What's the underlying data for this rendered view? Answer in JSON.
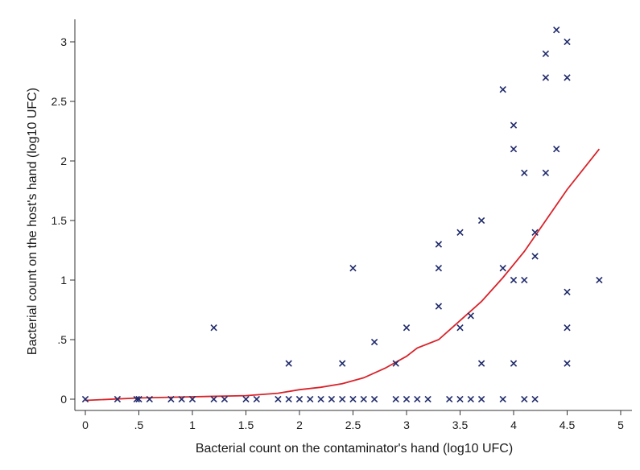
{
  "chart_data": {
    "type": "scatter",
    "xlabel": "Bacterial count on the contaminator's hand (log10 UFC)",
    "ylabel": "Bacterial count on the host's hand (log10 UFC)",
    "xlim": [
      -0.1,
      5.1
    ],
    "ylim": [
      -0.05,
      3.2
    ],
    "x_ticks": [
      0,
      0.5,
      1,
      1.5,
      2,
      2.5,
      3,
      3.5,
      4,
      4.5,
      5
    ],
    "x_tick_labels": [
      "0",
      ".5",
      "1",
      "1.5",
      "2",
      "2.5",
      "3",
      "3.5",
      "4",
      "4.5",
      "5"
    ],
    "y_ticks": [
      0,
      0.5,
      1,
      1.5,
      2,
      2.5,
      3
    ],
    "y_tick_labels": [
      "0",
      ".5",
      "1",
      "1.5",
      "2",
      "2.5",
      "3"
    ],
    "grid": false,
    "colors": {
      "points": "#1f2a6b",
      "fit": "#d8232a",
      "axis": "#333333"
    },
    "series": [
      {
        "kind": "points",
        "marker": "x",
        "points": [
          [
            0,
            0
          ],
          [
            0.3,
            0
          ],
          [
            0.48,
            0
          ],
          [
            0.5,
            0
          ],
          [
            0.6,
            0
          ],
          [
            0.8,
            0
          ],
          [
            0.9,
            0
          ],
          [
            1.0,
            0
          ],
          [
            1.2,
            0
          ],
          [
            1.3,
            0
          ],
          [
            1.5,
            0
          ],
          [
            1.6,
            0
          ],
          [
            1.8,
            0
          ],
          [
            1.9,
            0
          ],
          [
            2.0,
            0
          ],
          [
            2.1,
            0
          ],
          [
            2.2,
            0
          ],
          [
            2.3,
            0
          ],
          [
            2.4,
            0
          ],
          [
            2.5,
            0
          ],
          [
            2.6,
            0
          ],
          [
            2.7,
            0
          ],
          [
            2.9,
            0
          ],
          [
            3.0,
            0
          ],
          [
            3.1,
            0
          ],
          [
            3.2,
            0
          ],
          [
            3.4,
            0
          ],
          [
            3.5,
            0
          ],
          [
            3.6,
            0
          ],
          [
            3.7,
            0
          ],
          [
            3.9,
            0
          ],
          [
            4.1,
            0
          ],
          [
            4.2,
            0
          ],
          [
            1.2,
            0.6
          ],
          [
            1.9,
            0.3
          ],
          [
            2.4,
            0.3
          ],
          [
            2.5,
            1.1
          ],
          [
            2.7,
            0.48
          ],
          [
            2.9,
            0.3
          ],
          [
            3.0,
            0.6
          ],
          [
            3.3,
            0.78
          ],
          [
            3.3,
            1.1
          ],
          [
            3.3,
            1.3
          ],
          [
            3.5,
            0.6
          ],
          [
            3.5,
            1.4
          ],
          [
            3.6,
            0.7
          ],
          [
            3.7,
            0.3
          ],
          [
            3.7,
            1.5
          ],
          [
            3.9,
            1.1
          ],
          [
            3.9,
            2.6
          ],
          [
            4.0,
            0.3
          ],
          [
            4.0,
            1.0
          ],
          [
            4.0,
            2.1
          ],
          [
            4.0,
            2.3
          ],
          [
            4.1,
            1.0
          ],
          [
            4.1,
            1.9
          ],
          [
            4.2,
            1.2
          ],
          [
            4.2,
            1.4
          ],
          [
            4.3,
            1.9
          ],
          [
            4.3,
            2.7
          ],
          [
            4.3,
            2.9
          ],
          [
            4.4,
            2.1
          ],
          [
            4.4,
            3.1
          ],
          [
            4.5,
            0.3
          ],
          [
            4.5,
            0.6
          ],
          [
            4.5,
            0.9
          ],
          [
            4.5,
            2.7
          ],
          [
            4.5,
            3.0
          ],
          [
            4.8,
            1.0
          ]
        ]
      },
      {
        "kind": "line",
        "points": [
          [
            0,
            -0.01
          ],
          [
            0.5,
            0.01
          ],
          [
            1.0,
            0.02
          ],
          [
            1.5,
            0.03
          ],
          [
            1.8,
            0.05
          ],
          [
            2.0,
            0.08
          ],
          [
            2.2,
            0.1
          ],
          [
            2.4,
            0.13
          ],
          [
            2.6,
            0.18
          ],
          [
            2.8,
            0.26
          ],
          [
            3.0,
            0.36
          ],
          [
            3.1,
            0.43
          ],
          [
            3.3,
            0.5
          ],
          [
            3.5,
            0.66
          ],
          [
            3.7,
            0.82
          ],
          [
            3.9,
            1.02
          ],
          [
            4.1,
            1.24
          ],
          [
            4.3,
            1.5
          ],
          [
            4.5,
            1.76
          ],
          [
            4.8,
            2.1
          ]
        ]
      }
    ]
  }
}
